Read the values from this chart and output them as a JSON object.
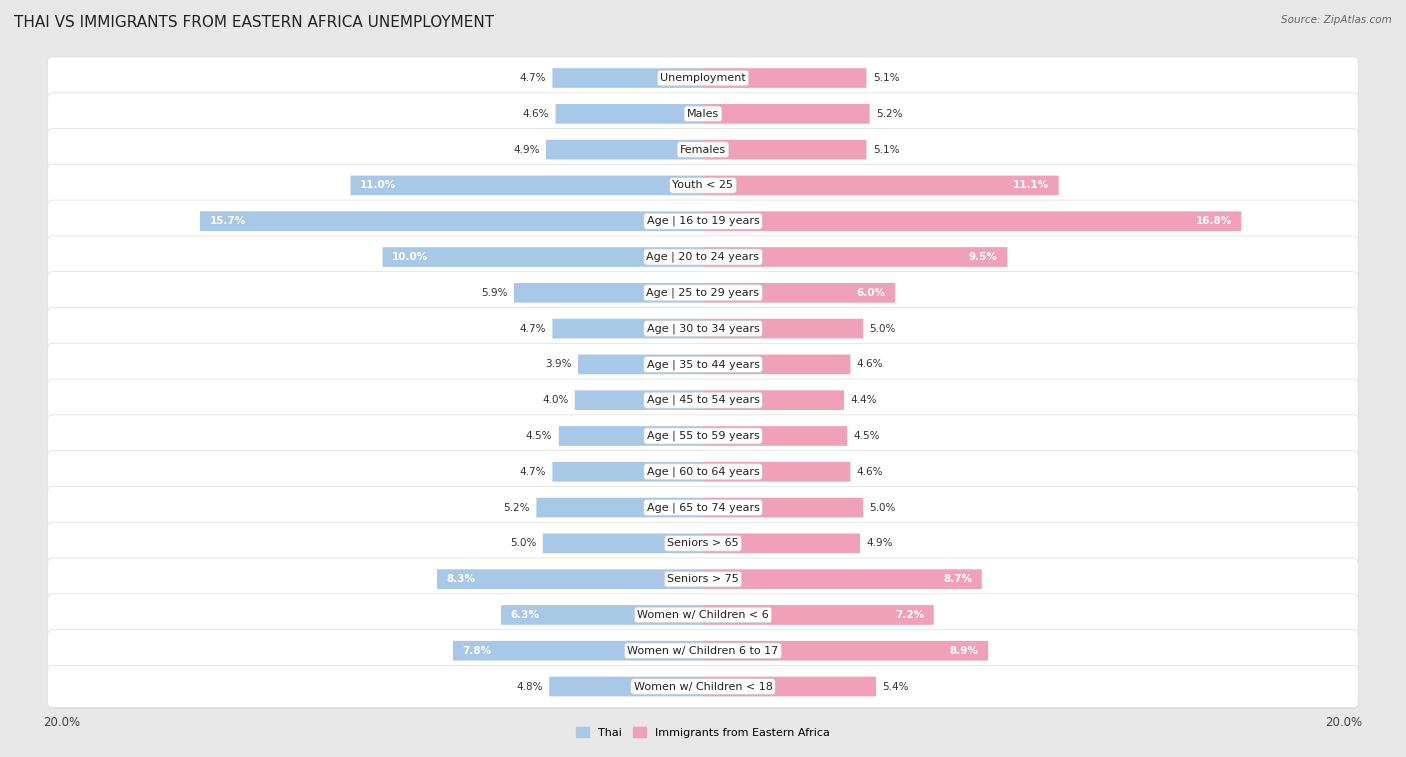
{
  "title": "Thai vs Immigrants from Eastern Africa Unemployment",
  "source": "Source: ZipAtlas.com",
  "categories": [
    "Unemployment",
    "Males",
    "Females",
    "Youth < 25",
    "Age | 16 to 19 years",
    "Age | 20 to 24 years",
    "Age | 25 to 29 years",
    "Age | 30 to 34 years",
    "Age | 35 to 44 years",
    "Age | 45 to 54 years",
    "Age | 55 to 59 years",
    "Age | 60 to 64 years",
    "Age | 65 to 74 years",
    "Seniors > 65",
    "Seniors > 75",
    "Women w/ Children < 6",
    "Women w/ Children 6 to 17",
    "Women w/ Children < 18"
  ],
  "thai_values": [
    4.7,
    4.6,
    4.9,
    11.0,
    15.7,
    10.0,
    5.9,
    4.7,
    3.9,
    4.0,
    4.5,
    4.7,
    5.2,
    5.0,
    8.3,
    6.3,
    7.8,
    4.8
  ],
  "eastern_africa_values": [
    5.1,
    5.2,
    5.1,
    11.1,
    16.8,
    9.5,
    6.0,
    5.0,
    4.6,
    4.4,
    4.5,
    4.6,
    5.0,
    4.9,
    8.7,
    7.2,
    8.9,
    5.4
  ],
  "thai_color": "#a8c8e8",
  "eastern_africa_color": "#f0a0b8",
  "thai_highlight_color": "#6699cc",
  "eastern_africa_highlight_color": "#dd6688",
  "background_color": "#e8e8e8",
  "row_bg_color": "#ffffff",
  "row_border_color": "#cccccc",
  "max_value": 20.0,
  "bar_height": 0.55,
  "legend_thai": "Thai",
  "legend_eastern_africa": "Immigrants from Eastern Africa",
  "title_fontsize": 11,
  "label_fontsize": 8.0,
  "value_fontsize": 7.5,
  "tick_fontsize": 8.5
}
